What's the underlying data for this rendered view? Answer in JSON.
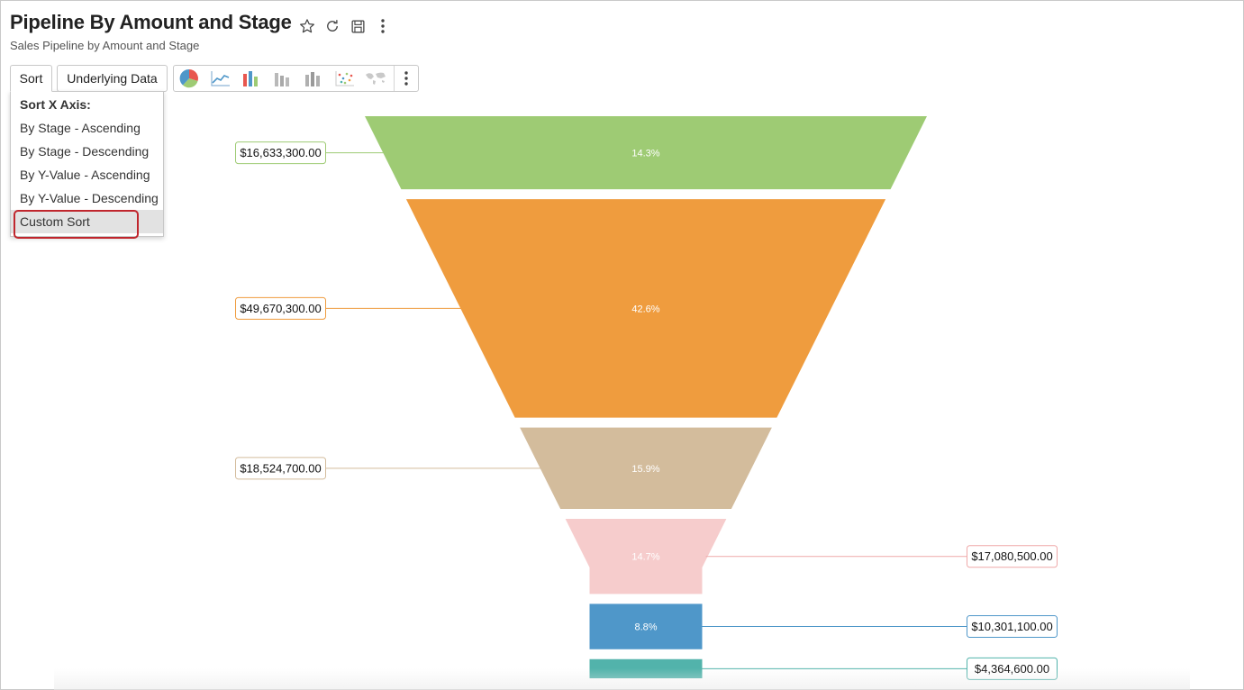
{
  "header": {
    "title": "Pipeline By Amount and Stage",
    "subtitle": "Sales Pipeline by Amount and Stage"
  },
  "title_actions": [
    "star-icon",
    "refresh-icon",
    "save-icon",
    "more-vertical-icon"
  ],
  "toolbar": {
    "sort_label": "Sort",
    "underlying_data_label": "Underlying Data",
    "chart_types": [
      "pie-chart-icon",
      "line-chart-icon",
      "bar-chart-icon",
      "stacked-bar-icon",
      "grouped-bar-icon",
      "scatter-icon",
      "map-icon"
    ]
  },
  "sort_menu": {
    "header": "Sort X Axis:",
    "items": [
      "By Stage - Ascending",
      "By Stage - Descending",
      "By Y-Value - Ascending",
      "By Y-Value - Descending",
      "Custom Sort"
    ],
    "selected": "Custom Sort"
  },
  "colors": {
    "highlight": "#c0262d"
  },
  "chart_data": {
    "type": "funnel",
    "segments": [
      {
        "value": 16633300,
        "value_label": "$16,633,300.00",
        "percent_label": "14.3%",
        "color": "#9ecb74",
        "label_side": "left"
      },
      {
        "value": 49670300,
        "value_label": "$49,670,300.00",
        "percent_label": "42.6%",
        "color": "#ef9c3e",
        "label_side": "left"
      },
      {
        "value": 18524700,
        "value_label": "$18,524,700.00",
        "percent_label": "15.9%",
        "color": "#d3bc9c",
        "label_side": "left"
      },
      {
        "value": 17080500,
        "value_label": "$17,080,500.00",
        "percent_label": "14.7%",
        "color": "#f6cccc",
        "label_side": "right"
      },
      {
        "value": 10301100,
        "value_label": "$10,301,100.00",
        "percent_label": "8.8%",
        "color": "#4f97c9",
        "label_side": "right"
      },
      {
        "value": 4364600,
        "value_label": "$4,364,600.00",
        "percent_label": "",
        "color": "#52b3ab",
        "label_side": "right"
      }
    ]
  }
}
